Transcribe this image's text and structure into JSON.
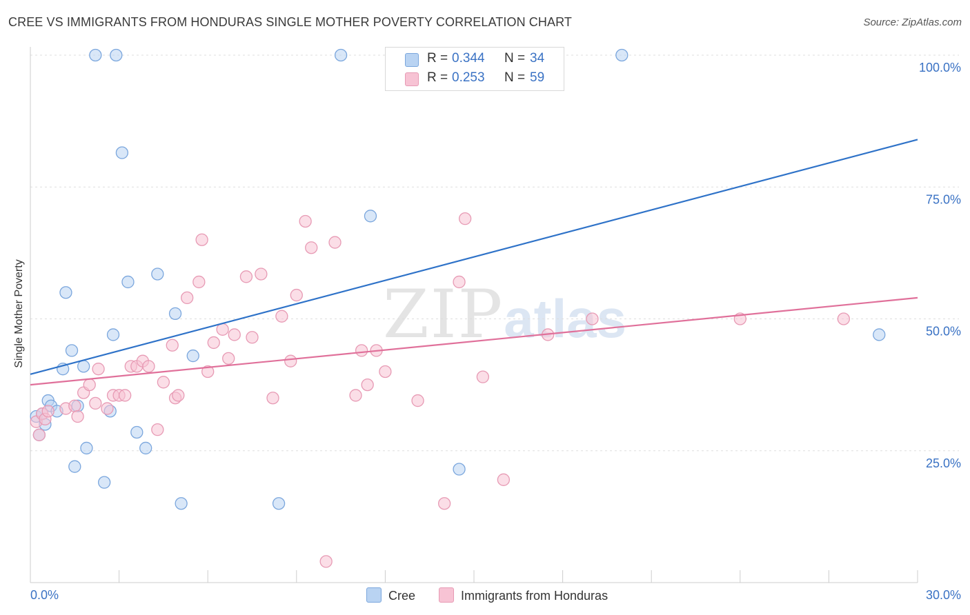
{
  "title": "CREE VS IMMIGRANTS FROM HONDURAS SINGLE MOTHER POVERTY CORRELATION CHART",
  "source": "Source: ZipAtlas.com",
  "watermark": {
    "zip": "ZIP",
    "atlas": "atlas"
  },
  "colors": {
    "cree_fill": "#b9d3f2",
    "cree_stroke": "#7aa6dd",
    "cree_line": "#2e72c8",
    "hond_fill": "#f7c3d4",
    "hond_stroke": "#e79ab4",
    "hond_line": "#e0709a",
    "tick_label": "#3a72c4",
    "grid": "#dddddd"
  },
  "legend_top": [
    {
      "r_label": "R =",
      "r_value": "0.344",
      "n_label": "N =",
      "n_value": "34"
    },
    {
      "r_label": "R =",
      "r_value": "0.253",
      "n_label": "N =",
      "n_value": "59"
    }
  ],
  "legend_bottom": [
    "Cree",
    "Immigrants from Honduras"
  ],
  "chart_data": {
    "type": "scatter",
    "xlabel": "",
    "ylabel": "Single Mother Poverty",
    "xlim": [
      0,
      30
    ],
    "ylim": [
      0,
      100
    ],
    "x_tick_labels": [
      {
        "value": 0,
        "label": "0.0%"
      },
      {
        "value": 30,
        "label": "30.0%"
      }
    ],
    "y_tick_labels": [
      {
        "value": 25,
        "label": "25.0%"
      },
      {
        "value": 50,
        "label": "50.0%"
      },
      {
        "value": 75,
        "label": "75.0%"
      },
      {
        "value": 100,
        "label": "100.0%"
      }
    ],
    "grid": "horizontal-dashed",
    "legend_position": "top-center",
    "series": [
      {
        "name": "Cree",
        "r": 0.344,
        "n": 34,
        "trend": [
          [
            0,
            39.5
          ],
          [
            30,
            84
          ]
        ],
        "points": [
          [
            0.2,
            31.5
          ],
          [
            0.3,
            28
          ],
          [
            0.4,
            32
          ],
          [
            0.5,
            30
          ],
          [
            0.6,
            34.5
          ],
          [
            0.7,
            33.5
          ],
          [
            0.9,
            32.5
          ],
          [
            1.1,
            40.5
          ],
          [
            1.2,
            55
          ],
          [
            1.4,
            44
          ],
          [
            1.5,
            22
          ],
          [
            1.6,
            33.5
          ],
          [
            1.8,
            41
          ],
          [
            1.9,
            25.5
          ],
          [
            2.2,
            100
          ],
          [
            2.5,
            19
          ],
          [
            2.7,
            32.5
          ],
          [
            2.8,
            47
          ],
          [
            2.9,
            100
          ],
          [
            3.1,
            81.5
          ],
          [
            3.3,
            57
          ],
          [
            3.6,
            28.5
          ],
          [
            3.9,
            25.5
          ],
          [
            4.3,
            58.5
          ],
          [
            4.9,
            51
          ],
          [
            5.1,
            15
          ],
          [
            5.5,
            43
          ],
          [
            8.4,
            15
          ],
          [
            10.5,
            100
          ],
          [
            11.5,
            69.5
          ],
          [
            13.5,
            100
          ],
          [
            14.5,
            21.5
          ],
          [
            20,
            100
          ],
          [
            28.7,
            47
          ]
        ]
      },
      {
        "name": "Immigrants from Honduras",
        "r": 0.253,
        "n": 59,
        "trend": [
          [
            0,
            37.5
          ],
          [
            30,
            54
          ]
        ],
        "points": [
          [
            0.2,
            30.5
          ],
          [
            0.3,
            28
          ],
          [
            0.4,
            32
          ],
          [
            0.5,
            31
          ],
          [
            0.6,
            32.5
          ],
          [
            1.2,
            33
          ],
          [
            1.5,
            33.5
          ],
          [
            1.6,
            31.5
          ],
          [
            1.8,
            36
          ],
          [
            2.0,
            37.5
          ],
          [
            2.2,
            34
          ],
          [
            2.3,
            40.5
          ],
          [
            2.6,
            33
          ],
          [
            2.8,
            35.5
          ],
          [
            3.0,
            35.5
          ],
          [
            3.2,
            35.5
          ],
          [
            3.4,
            41
          ],
          [
            3.6,
            41
          ],
          [
            3.8,
            42
          ],
          [
            4.0,
            41
          ],
          [
            4.3,
            29
          ],
          [
            4.5,
            38
          ],
          [
            4.8,
            45
          ],
          [
            4.9,
            35
          ],
          [
            5.0,
            35.5
          ],
          [
            5.3,
            54
          ],
          [
            5.7,
            57
          ],
          [
            5.8,
            65
          ],
          [
            6.0,
            40
          ],
          [
            6.2,
            45.5
          ],
          [
            6.5,
            48
          ],
          [
            6.7,
            42.5
          ],
          [
            6.9,
            47
          ],
          [
            7.3,
            58
          ],
          [
            7.5,
            46.5
          ],
          [
            7.8,
            58.5
          ],
          [
            8.2,
            35
          ],
          [
            8.5,
            50.5
          ],
          [
            8.8,
            42
          ],
          [
            9.0,
            54.5
          ],
          [
            9.3,
            68.5
          ],
          [
            9.5,
            63.5
          ],
          [
            10.0,
            4
          ],
          [
            10.3,
            64.5
          ],
          [
            11.0,
            35.5
          ],
          [
            11.2,
            44
          ],
          [
            11.4,
            37.5
          ],
          [
            11.7,
            44
          ],
          [
            12.0,
            40
          ],
          [
            13.1,
            34.5
          ],
          [
            14.0,
            15
          ],
          [
            14.5,
            57
          ],
          [
            14.7,
            69
          ],
          [
            15.3,
            39
          ],
          [
            16.0,
            19.5
          ],
          [
            17.5,
            47
          ],
          [
            19.0,
            50
          ],
          [
            24.0,
            50
          ],
          [
            27.5,
            50
          ]
        ]
      }
    ]
  }
}
